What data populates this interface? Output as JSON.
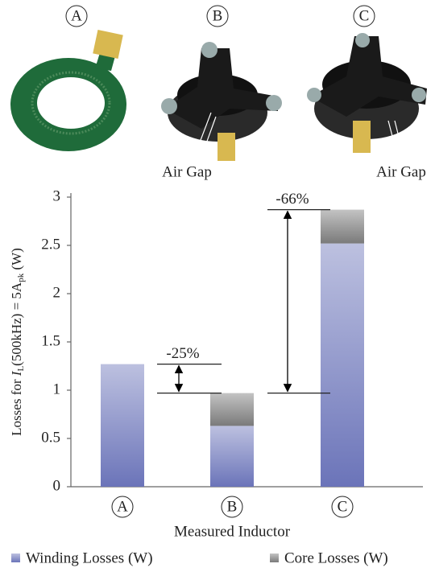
{
  "chart_data": {
    "type": "stacked_bar",
    "y_label": [
      "Losses for ",
      "I",
      "L",
      "(500kHz) = 5A",
      "pk",
      " (W)"
    ],
    "x_label": "Measured Inductor",
    "categories": [
      "A",
      "B",
      "C"
    ],
    "series": [
      {
        "name": "Winding Losses (W)",
        "color": "#6b74b9",
        "values": [
          1.27,
          0.63,
          2.52
        ]
      },
      {
        "name": "Core Losses (W)",
        "color": "#7a7a7a",
        "values": [
          0,
          0.34,
          0.35
        ]
      }
    ],
    "ylim": [
      0,
      3
    ],
    "yticks": [
      0,
      0.5,
      1,
      1.5,
      2,
      2.5,
      3
    ],
    "annotations": [
      "-25%",
      "-66%"
    ],
    "photo_labels": [
      "Air Gap",
      "Air Gap"
    ]
  }
}
